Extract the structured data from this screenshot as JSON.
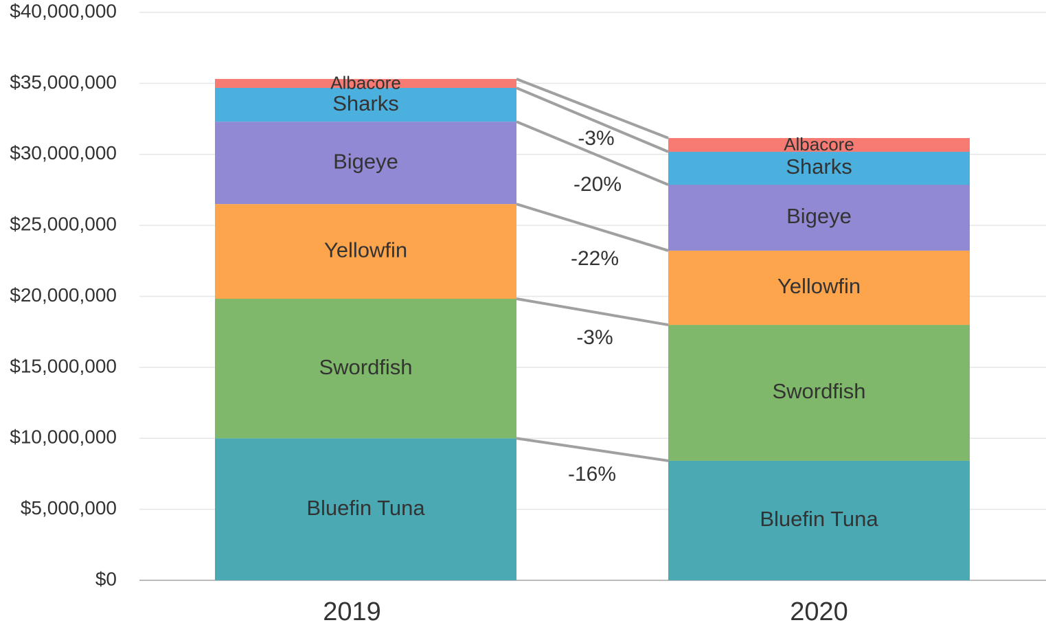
{
  "chart_data": {
    "type": "stacked_bar",
    "categories": [
      "2019",
      "2020"
    ],
    "series": [
      {
        "name": "Bluefin Tuna",
        "color": "#4aa9b3",
        "values": [
          10000000,
          8420000
        ]
      },
      {
        "name": "Swordfish",
        "color": "#80b86b",
        "values": [
          9830000,
          9570000
        ]
      },
      {
        "name": "Yellowfin",
        "color": "#fca54c",
        "values": [
          6670000,
          5230000
        ]
      },
      {
        "name": "Bigeye",
        "color": "#9189d4",
        "values": [
          5800000,
          4640000
        ]
      },
      {
        "name": "Sharks",
        "color": "#4bb0dd",
        "values": [
          2380000,
          2320000
        ]
      },
      {
        "name": "Albacore",
        "color": "#f77b72",
        "values": [
          630000,
          970000
        ]
      }
    ],
    "annotations": [
      "-3%",
      "-20%",
      "-22%",
      "-3%",
      "-16%"
    ],
    "ylim": [
      0,
      40000000
    ],
    "yticks": [
      {
        "value": 0,
        "label": "$0"
      },
      {
        "value": 5000000,
        "label": "$5,000,000"
      },
      {
        "value": 10000000,
        "label": "$10,000,000"
      },
      {
        "value": 15000000,
        "label": "$15,000,000"
      },
      {
        "value": 20000000,
        "label": "$20,000,000"
      },
      {
        "value": 25000000,
        "label": "$25,000,000"
      },
      {
        "value": 30000000,
        "label": "$30,000,000"
      },
      {
        "value": 35000000,
        "label": "$35,000,000"
      },
      {
        "value": 40000000,
        "label": "$40,000,000"
      }
    ],
    "grid": true
  }
}
